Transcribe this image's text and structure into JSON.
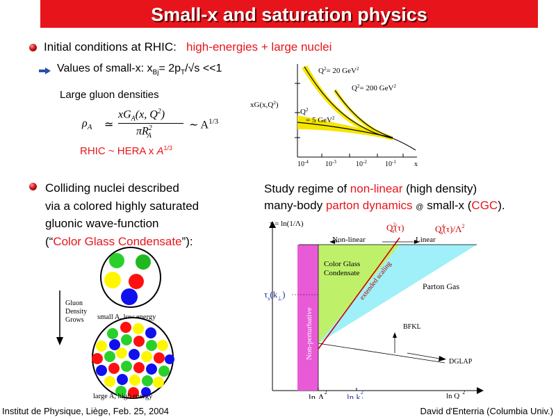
{
  "slide": {
    "title": "Small-x and saturation physics",
    "bullet1": {
      "prefix": "Initial conditions at RHIC:",
      "highlight": "high-energies + large nuclei"
    },
    "sub1": {
      "prefix": "Values of small-x: x",
      "bj": "Bj",
      "eq": "= 2p",
      "t": "T",
      "rest": "/√s <<1"
    },
    "gluon_densities": "Large gluon densities",
    "formula": {
      "rho": "ρ",
      "A": "A",
      "approx": "≃",
      "num": "xG",
      "num_sub": "A",
      "num_rest": "(x, Q",
      "num_sq": "2",
      "num_close": ")",
      "den": "πR",
      "den_sub": "A",
      "den_sq": "2",
      "sim": "∼ A",
      "pow": "1/3"
    },
    "rhic_hera": {
      "text": "RHIC ~ HERA x ",
      "A": "A",
      "pow": "1/3"
    },
    "bullet2": {
      "lines": [
        "Colliding nuclei described",
        "via a colored highly saturated",
        "gluonic wave-function"
      ],
      "quote_open": "(“",
      "cgc": "Color Glass Condensate",
      "quote_close": "”):"
    },
    "study": {
      "line1_a": "Study regime of ",
      "line1_b": "non-linear",
      "line1_c": " (high density)",
      "line2_a": "many-body ",
      "line2_b": "parton dynamics",
      "line2_at": "@",
      "line2_c": " small-x (",
      "line2_d": "CGC",
      "line2_e": ")."
    },
    "footer_left": "Institut de Physique, Liège, Feb. 25, 2004",
    "footer_right": "David d'Enterria (Columbia Univ.)"
  },
  "xg_plot": {
    "ylabel_main": "xG(x,Q",
    "ylabel_sq": "2",
    "ylabel_close": ")",
    "labels": [
      {
        "text": "Q",
        "sq": "2",
        "rest": "= 20 GeV",
        "unit_sq": "2"
      },
      {
        "text": "Q",
        "sq": "2",
        "rest": "= 200 GeV",
        "unit_sq": "2"
      },
      {
        "text": "Q",
        "sq": "2",
        "rest": "",
        "unit_sq": ""
      },
      {
        "text": "= 5 GeV",
        "sq": "2",
        "rest": "",
        "unit_sq": ""
      }
    ],
    "xticks": [
      {
        "base": "10",
        "exp": "-4"
      },
      {
        "base": "10",
        "exp": "-3"
      },
      {
        "base": "10",
        "exp": "-2"
      },
      {
        "base": "10",
        "exp": "-1"
      }
    ],
    "xlabel": "x",
    "band_color": "#f5e600"
  },
  "density_sketch": {
    "side_label": [
      "Gluon",
      "Density",
      "Grows"
    ],
    "small_label": "small A, low energy",
    "large_label": "large A, high energy"
  },
  "phase_diagram": {
    "yaxis": "τ = ln(1/Λ)",
    "qs2": {
      "base": "Q",
      "sup": "2",
      "sub": "s",
      "arg": "(τ)"
    },
    "qs4": {
      "base": "Q",
      "sup": "4",
      "sub": "s",
      "arg": "(τ)/Λ",
      "sq": "2"
    },
    "nonlinear": "Non-linear",
    "linear": "Linear",
    "cgc": [
      "Color Glass",
      "Condensate"
    ],
    "extended": "extended scaling",
    "parton_gas": "Parton Gas",
    "tau_s": {
      "base": "τ",
      "sub": "s",
      "arg": "(k",
      "perp": "⊥",
      "close": ")"
    },
    "nonpert": "Non-perturbative",
    "bfkl": "BFKL",
    "dglap": "DGLAP",
    "ln_lambda": {
      "t": "ln Λ",
      "sq": "2"
    },
    "ln_k": {
      "t": "ln k",
      "sq": "2",
      "sub": "⊥"
    },
    "ln_q": {
      "t": "ln Q",
      "sq": "2"
    },
    "colors": {
      "pink": "#e85ad6",
      "green": "#bff06a",
      "cyan": "#9ff0f8",
      "red": "#cc0000"
    }
  }
}
